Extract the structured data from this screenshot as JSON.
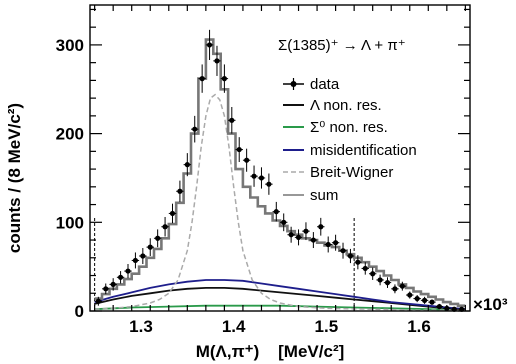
{
  "chart_data": {
    "type": "line",
    "title": "Σ(1385)⁺ → Λ + π⁺",
    "xlabel": "M(Λ,π⁺)    [MeV/c²]",
    "ylabel": "counts / (8 MeV/c²)",
    "x_multiplier": "×10³",
    "xlim": [
      1.245,
      1.655
    ],
    "ylim": [
      0,
      345
    ],
    "xticks": [
      1.3,
      1.4,
      1.5,
      1.6
    ],
    "xtick_labels": [
      "1.3",
      "1.4",
      "1.5",
      "1.6"
    ],
    "yticks": [
      0,
      100,
      200,
      300
    ],
    "ytick_labels": [
      "0",
      "100",
      "200",
      "300"
    ],
    "legend_position": "top-right",
    "cut_lines_x": [
      1.25,
      1.53
    ],
    "series": [
      {
        "name": "data",
        "style": "points",
        "color": "#000000",
        "x": [
          1.254,
          1.262,
          1.27,
          1.278,
          1.286,
          1.294,
          1.302,
          1.31,
          1.318,
          1.326,
          1.334,
          1.342,
          1.35,
          1.358,
          1.366,
          1.374,
          1.382,
          1.39,
          1.398,
          1.406,
          1.414,
          1.422,
          1.43,
          1.438,
          1.446,
          1.454,
          1.462,
          1.47,
          1.478,
          1.486,
          1.494,
          1.502,
          1.51,
          1.518,
          1.526,
          1.534,
          1.542,
          1.55,
          1.558,
          1.566,
          1.574,
          1.582,
          1.59,
          1.598,
          1.606,
          1.614,
          1.622,
          1.63,
          1.638,
          1.646
        ],
        "y": [
          11,
          25,
          30,
          38,
          45,
          57,
          62,
          72,
          82,
          95,
          110,
          135,
          165,
          205,
          262,
          300,
          282,
          262,
          215,
          182,
          170,
          152,
          150,
          143,
          112,
          100,
          86,
          83,
          90,
          80,
          95,
          75,
          77,
          68,
          62,
          55,
          48,
          42,
          35,
          32,
          25,
          28,
          18,
          14,
          12,
          10,
          5,
          3,
          2,
          2
        ],
        "yerr": [
          5,
          6,
          7,
          7,
          8,
          9,
          9,
          10,
          10,
          11,
          11,
          12,
          13,
          15,
          16,
          17,
          17,
          16,
          15,
          14,
          13,
          12,
          12,
          12,
          11,
          10,
          9,
          9,
          10,
          9,
          10,
          9,
          9,
          9,
          8,
          8,
          7,
          7,
          6,
          6,
          5,
          5,
          4,
          4,
          4,
          3,
          3,
          2,
          2,
          2
        ]
      },
      {
        "name": "Λ non. res.",
        "style": "solid",
        "color": "#111111",
        "x": [
          1.25,
          1.27,
          1.29,
          1.31,
          1.33,
          1.35,
          1.37,
          1.39,
          1.41,
          1.43,
          1.45,
          1.47,
          1.49,
          1.51,
          1.53,
          1.55,
          1.57,
          1.59,
          1.61,
          1.63,
          1.65
        ],
        "y": [
          8,
          13,
          17,
          20,
          23,
          25,
          26,
          26,
          25,
          23,
          21,
          19,
          17,
          15,
          13,
          11,
          9,
          7,
          5,
          3,
          2
        ]
      },
      {
        "name": "Σ⁰ non. res.",
        "style": "solid",
        "color": "#2a9a4a",
        "x": [
          1.25,
          1.29,
          1.33,
          1.37,
          1.41,
          1.45,
          1.49,
          1.53,
          1.57,
          1.61,
          1.65
        ],
        "y": [
          2,
          4,
          5,
          6,
          6,
          6,
          5,
          4,
          3,
          2,
          1
        ]
      },
      {
        "name": "misidentification",
        "style": "solid",
        "color": "#1e1e8c",
        "x": [
          1.25,
          1.27,
          1.29,
          1.31,
          1.33,
          1.35,
          1.37,
          1.39,
          1.41,
          1.43,
          1.45,
          1.47,
          1.49,
          1.51,
          1.53,
          1.55,
          1.57,
          1.59,
          1.61,
          1.63,
          1.65
        ],
        "y": [
          10,
          16,
          21,
          26,
          30,
          33,
          35,
          35,
          34,
          31,
          28,
          25,
          22,
          19,
          16,
          13,
          10,
          8,
          6,
          4,
          2
        ]
      },
      {
        "name": "Breit-Wigner",
        "style": "dashed",
        "color": "#aaaaaa",
        "x": [
          1.25,
          1.27,
          1.29,
          1.3,
          1.31,
          1.32,
          1.33,
          1.34,
          1.35,
          1.355,
          1.36,
          1.365,
          1.37,
          1.375,
          1.38,
          1.385,
          1.39,
          1.395,
          1.4,
          1.405,
          1.41,
          1.42,
          1.43,
          1.44,
          1.45,
          1.47,
          1.5,
          1.55,
          1.6,
          1.65
        ],
        "y": [
          2,
          3,
          5,
          7,
          9,
          13,
          20,
          35,
          68,
          100,
          140,
          185,
          220,
          240,
          244,
          238,
          220,
          185,
          140,
          100,
          68,
          35,
          20,
          13,
          9,
          5,
          3,
          2,
          1,
          1
        ]
      },
      {
        "name": "sum",
        "style": "step",
        "color": "#777777",
        "x": [
          1.254,
          1.262,
          1.27,
          1.278,
          1.286,
          1.294,
          1.302,
          1.31,
          1.318,
          1.326,
          1.334,
          1.342,
          1.35,
          1.358,
          1.366,
          1.374,
          1.382,
          1.39,
          1.398,
          1.406,
          1.414,
          1.422,
          1.43,
          1.438,
          1.446,
          1.454,
          1.462,
          1.47,
          1.478,
          1.486,
          1.494,
          1.502,
          1.51,
          1.518,
          1.526,
          1.534,
          1.542,
          1.55,
          1.558,
          1.566,
          1.574,
          1.582,
          1.59,
          1.598,
          1.606,
          1.614,
          1.622,
          1.63,
          1.638,
          1.646
        ],
        "y": [
          14,
          19,
          25,
          30,
          36,
          42,
          50,
          60,
          70,
          82,
          98,
          122,
          155,
          200,
          262,
          306,
          290,
          250,
          200,
          160,
          140,
          128,
          118,
          110,
          102,
          96,
          90,
          86,
          82,
          80,
          77,
          74,
          72,
          68,
          64,
          60,
          55,
          50,
          45,
          40,
          35,
          30,
          26,
          22,
          19,
          16,
          13,
          10,
          8,
          6
        ]
      }
    ]
  }
}
